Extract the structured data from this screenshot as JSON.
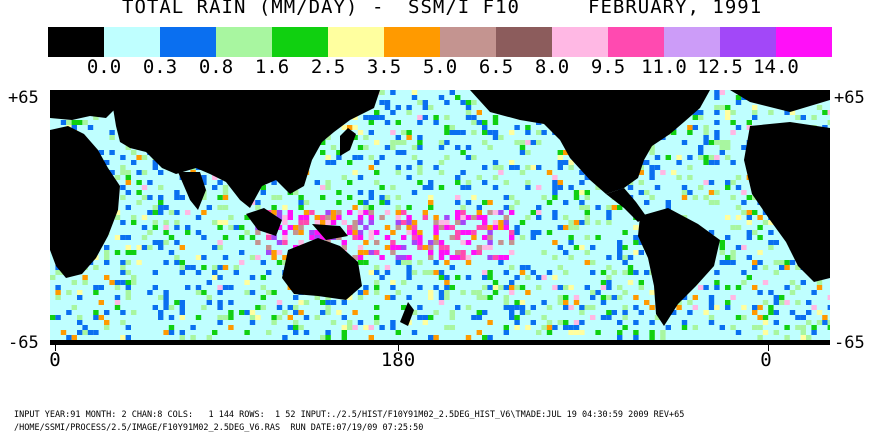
{
  "title": {
    "product": "TOTAL RAIN (MM/DAY)",
    "separator": "-",
    "sensor": "SSM/I F10",
    "date": "FEBRUARY, 1991"
  },
  "legend": {
    "colors": [
      "#000000",
      "#bfffff",
      "#0a6ff0",
      "#a8f6a0",
      "#10d010",
      "#ffff9f",
      "#ff9a00",
      "#c49490",
      "#8c5c5c",
      "#ffb8e4",
      "#ff4ab0",
      "#cc9cf8",
      "#a248f8",
      "#ff10f8"
    ],
    "labels": [
      "0.0",
      "0.3",
      "0.8",
      "1.6",
      "2.5",
      "3.5",
      "5.0",
      "6.5",
      "8.0",
      "9.5",
      "11.0",
      "12.5",
      "14.0"
    ]
  },
  "axes": {
    "lat_top_left": "+65",
    "lat_top_right": "+65",
    "lat_bottom_left": "-65",
    "lat_bottom_right": "-65",
    "lon_labels": [
      "0",
      "180",
      "0"
    ]
  },
  "footer": {
    "line1": "INPUT YEAR:91 MONTH: 2 CHAN:8 COLS:   1 144 ROWS:  1 52 INPUT:./2.5/HIST/F10Y91M02_2.5DEG_HIST_V6\\TMADE:JUL 19 04:30:59 2009 REV+65",
    "line2": "/HOME/SSMI/PROCESS/2.5/IMAGE/F10Y91M02_2.5DEG_V6.RAS  RUN DATE:07/19/09 07:25:50"
  }
}
